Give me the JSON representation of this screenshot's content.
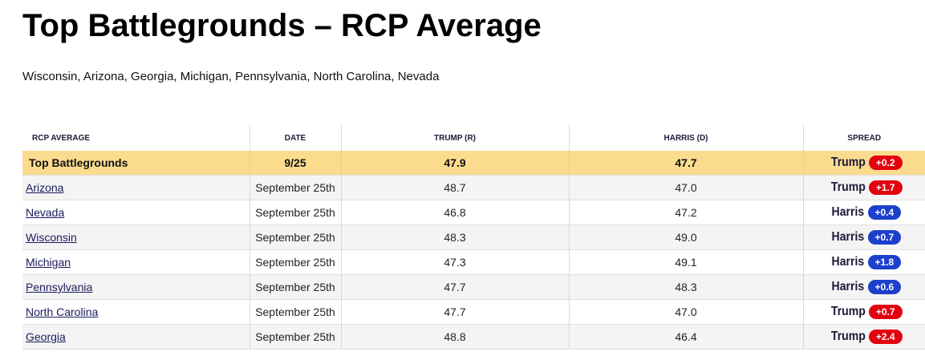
{
  "page": {
    "title": "Top Battlegrounds – RCP Average",
    "subtitle": "Wisconsin, Arizona, Georgia, Michigan, Pennsylvania, North Carolina, Nevada"
  },
  "colors": {
    "average_row_bg": "#fbdc8e",
    "republican_badge": "#e3000f",
    "democrat_badge": "#1c3fcc"
  },
  "table": {
    "headers": {
      "poll": "RCP AVERAGE",
      "date": "DATE",
      "trump": "TRUMP (R)",
      "harris": "HARRIS (D)",
      "spread": "SPREAD"
    },
    "average": {
      "label": "Top Battlegrounds",
      "date": "9/25",
      "trump": "47.9",
      "harris": "47.7",
      "spread_leader": "Trump",
      "spread_value": "+0.2",
      "party": "R"
    },
    "rows": [
      {
        "state": "Arizona",
        "date": "September 25th",
        "trump": "48.7",
        "harris": "47.0",
        "spread_leader": "Trump",
        "spread_value": "+1.7",
        "party": "R"
      },
      {
        "state": "Nevada",
        "date": "September 25th",
        "trump": "46.8",
        "harris": "47.2",
        "spread_leader": "Harris",
        "spread_value": "+0.4",
        "party": "D"
      },
      {
        "state": "Wisconsin",
        "date": "September 25th",
        "trump": "48.3",
        "harris": "49.0",
        "spread_leader": "Harris",
        "spread_value": "+0.7",
        "party": "D"
      },
      {
        "state": "Michigan",
        "date": "September 25th",
        "trump": "47.3",
        "harris": "49.1",
        "spread_leader": "Harris",
        "spread_value": "+1.8",
        "party": "D"
      },
      {
        "state": "Pennsylvania",
        "date": "September 25th",
        "trump": "47.7",
        "harris": "48.3",
        "spread_leader": "Harris",
        "spread_value": "+0.6",
        "party": "D"
      },
      {
        "state": "North Carolina",
        "date": "September 25th",
        "trump": "47.7",
        "harris": "47.0",
        "spread_leader": "Trump",
        "spread_value": "+0.7",
        "party": "R"
      },
      {
        "state": "Georgia",
        "date": "September 25th",
        "trump": "48.8",
        "harris": "46.4",
        "spread_leader": "Trump",
        "spread_value": "+2.4",
        "party": "R"
      }
    ]
  }
}
